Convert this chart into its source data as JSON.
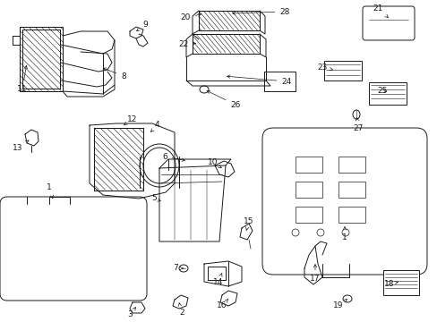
{
  "bg_color": "#ffffff",
  "lc": "#1a1a1a",
  "lw": 0.7,
  "fontsize": 6.5,
  "label_positions": {
    "1a": [
      70,
      198,
      55,
      188
    ],
    "1b": [
      388,
      255,
      388,
      270
    ],
    "2": [
      208,
      340,
      203,
      348
    ],
    "3": [
      155,
      345,
      148,
      350
    ],
    "4": [
      168,
      163,
      175,
      157
    ],
    "5": [
      185,
      220,
      178,
      218
    ],
    "6": [
      183,
      185,
      182,
      178
    ],
    "7": [
      215,
      297,
      207,
      298
    ],
    "8": [
      130,
      87,
      138,
      85
    ],
    "9": [
      158,
      42,
      162,
      37
    ],
    "10": [
      247,
      185,
      240,
      181
    ],
    "11": [
      38,
      92,
      28,
      100
    ],
    "12": [
      148,
      155,
      155,
      149
    ],
    "13": [
      32,
      158,
      22,
      165
    ],
    "14": [
      247,
      305,
      244,
      313
    ],
    "15": [
      276,
      258,
      278,
      251
    ],
    "16": [
      255,
      328,
      248,
      336
    ],
    "17": [
      360,
      302,
      355,
      312
    ],
    "18": [
      432,
      307,
      435,
      316
    ],
    "19": [
      390,
      332,
      383,
      340
    ],
    "20": [
      215,
      28,
      207,
      24
    ],
    "21": [
      418,
      18,
      422,
      12
    ],
    "22": [
      215,
      52,
      207,
      52
    ],
    "23": [
      368,
      78,
      360,
      77
    ],
    "24": [
      325,
      95,
      328,
      97
    ],
    "25": [
      422,
      100,
      427,
      100
    ],
    "26": [
      278,
      115,
      268,
      121
    ],
    "27": [
      402,
      135,
      400,
      145
    ],
    "28": [
      312,
      22,
      318,
      16
    ]
  }
}
